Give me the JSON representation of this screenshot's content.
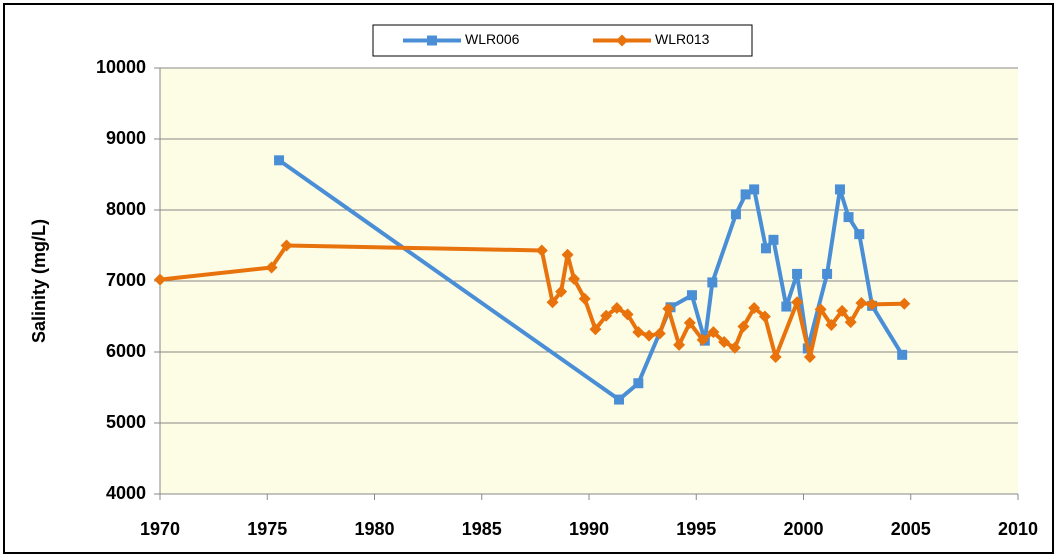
{
  "chart_data": {
    "type": "line",
    "y_label": "Salinity  (mg/L)",
    "xlim": [
      1970,
      2010
    ],
    "xticks": [
      1970,
      1975,
      1980,
      1985,
      1990,
      1995,
      2000,
      2005,
      2010
    ],
    "ylim": [
      4000,
      10000
    ],
    "yticks": [
      4000,
      5000,
      6000,
      7000,
      8000,
      9000,
      10000
    ],
    "grid": true,
    "legend": "top",
    "series": [
      {
        "name": "WLR006",
        "color": "#4a8fd6",
        "marker": "square",
        "x": [
          1975.55,
          1991.4,
          1992.3,
          1993.8,
          1994.8,
          1995.4,
          1995.75,
          1996.85,
          1997.3,
          1997.7,
          1998.25,
          1998.6,
          1999.2,
          1999.7,
          2000.2,
          2001.1,
          2001.7,
          2002.1,
          2002.6,
          2003.2,
          2004.6
        ],
        "values": [
          8700,
          5330,
          5560,
          6630,
          6800,
          6160,
          6980,
          7940,
          8220,
          8290,
          7460,
          7580,
          6640,
          7100,
          6050,
          7100,
          8290,
          7900,
          7660,
          6650,
          5960
        ]
      },
      {
        "name": "WLR013",
        "color": "#e8720c",
        "marker": "diamond",
        "x": [
          1970,
          1975.2,
          1975.9,
          1987.8,
          1988.3,
          1988.7,
          1989.0,
          1989.3,
          1989.8,
          1990.3,
          1990.8,
          1991.3,
          1991.8,
          1992.3,
          1992.8,
          1993.3,
          1993.7,
          1994.2,
          1994.7,
          1995.3,
          1995.8,
          1996.3,
          1996.8,
          1997.2,
          1997.7,
          1998.2,
          1998.7,
          1999.7,
          2000.3,
          2000.8,
          2001.3,
          2001.8,
          2002.2,
          2002.7,
          2003.2,
          2004.7
        ],
        "values": [
          7020,
          7190,
          7500,
          7430,
          6700,
          6850,
          7370,
          7030,
          6750,
          6320,
          6510,
          6620,
          6530,
          6280,
          6230,
          6260,
          6610,
          6100,
          6410,
          6170,
          6280,
          6140,
          6060,
          6360,
          6620,
          6500,
          5930,
          6700,
          5930,
          6600,
          6380,
          6580,
          6420,
          6690,
          6670,
          6680
        ]
      }
    ]
  }
}
